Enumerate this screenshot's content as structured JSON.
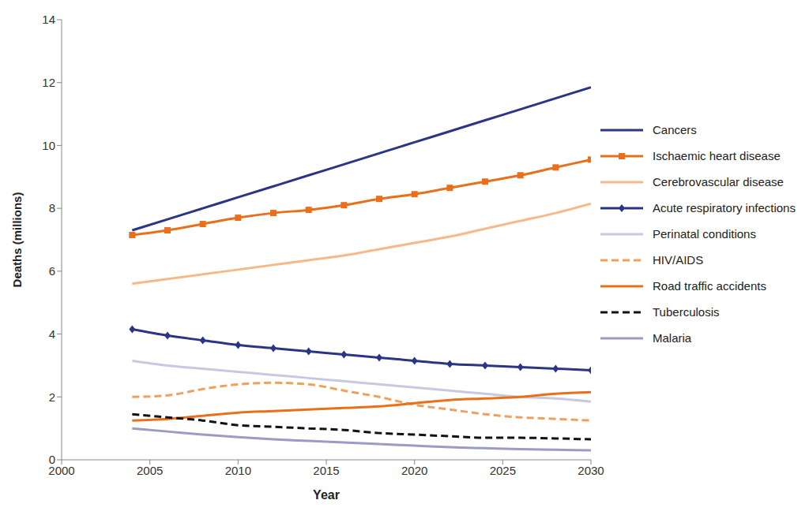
{
  "chart_data": {
    "type": "line",
    "x_label": "Year",
    "y_label": "Deaths (millions)",
    "x": [
      2004,
      2006,
      2008,
      2010,
      2012,
      2014,
      2016,
      2018,
      2020,
      2022,
      2024,
      2026,
      2028,
      2030
    ],
    "xlim": [
      2000,
      2030
    ],
    "xticks": [
      2000,
      2005,
      2010,
      2015,
      2020,
      2025,
      2030
    ],
    "ylim": [
      0,
      14
    ],
    "yticks": [
      0,
      2,
      4,
      6,
      8,
      10,
      12,
      14
    ],
    "grid": false,
    "legend": "right",
    "series": [
      {
        "name": "Cancers",
        "color": "#2b3585",
        "marker": "none",
        "line_style": "solid",
        "values": [
          7.3,
          7.65,
          8.0,
          8.35,
          8.7,
          9.05,
          9.4,
          9.75,
          10.1,
          10.45,
          10.8,
          11.15,
          11.5,
          11.85
        ]
      },
      {
        "name": "Ischaemic heart disease",
        "color": "#e8701a",
        "marker": "square",
        "line_style": "solid",
        "values": [
          7.15,
          7.3,
          7.5,
          7.7,
          7.85,
          7.95,
          8.1,
          8.3,
          8.45,
          8.65,
          8.85,
          9.05,
          9.3,
          9.55
        ]
      },
      {
        "name": "Cerebrovascular disease",
        "color": "#f5b98a",
        "marker": "none",
        "line_style": "solid",
        "values": [
          5.6,
          5.75,
          5.9,
          6.05,
          6.2,
          6.35,
          6.5,
          6.7,
          6.9,
          7.1,
          7.35,
          7.6,
          7.85,
          8.15
        ]
      },
      {
        "name": "Acute respiratory infections",
        "color": "#2b3585",
        "marker": "diamond",
        "line_style": "solid",
        "values": [
          4.15,
          3.95,
          3.8,
          3.65,
          3.55,
          3.45,
          3.35,
          3.25,
          3.15,
          3.05,
          3.0,
          2.95,
          2.9,
          2.85
        ]
      },
      {
        "name": "Perinatal conditions",
        "color": "#c7c9e2",
        "marker": "none",
        "line_style": "solid",
        "values": [
          3.15,
          3.0,
          2.9,
          2.8,
          2.7,
          2.6,
          2.5,
          2.4,
          2.3,
          2.2,
          2.1,
          2.0,
          1.95,
          1.85
        ]
      },
      {
        "name": "HIV/AIDS",
        "color": "#f0a05a",
        "marker": "none",
        "line_style": "dashed",
        "values": [
          2.0,
          2.05,
          2.25,
          2.4,
          2.45,
          2.4,
          2.2,
          2.0,
          1.75,
          1.6,
          1.45,
          1.35,
          1.3,
          1.25
        ]
      },
      {
        "name": "Road traffic accidents",
        "color": "#e8701a",
        "marker": "none",
        "line_style": "solid",
        "values": [
          1.25,
          1.3,
          1.4,
          1.5,
          1.55,
          1.6,
          1.65,
          1.7,
          1.8,
          1.9,
          1.95,
          2.0,
          2.1,
          2.15
        ]
      },
      {
        "name": "Tuberculosis",
        "color": "#111111",
        "marker": "none",
        "line_style": "dashed",
        "values": [
          1.45,
          1.35,
          1.25,
          1.1,
          1.05,
          1.0,
          0.95,
          0.85,
          0.8,
          0.75,
          0.7,
          0.7,
          0.68,
          0.65
        ]
      },
      {
        "name": "Malaria",
        "color": "#9a9cc6",
        "marker": "none",
        "line_style": "solid",
        "values": [
          1.0,
          0.9,
          0.8,
          0.72,
          0.65,
          0.6,
          0.55,
          0.5,
          0.45,
          0.4,
          0.37,
          0.34,
          0.32,
          0.3
        ]
      }
    ]
  }
}
